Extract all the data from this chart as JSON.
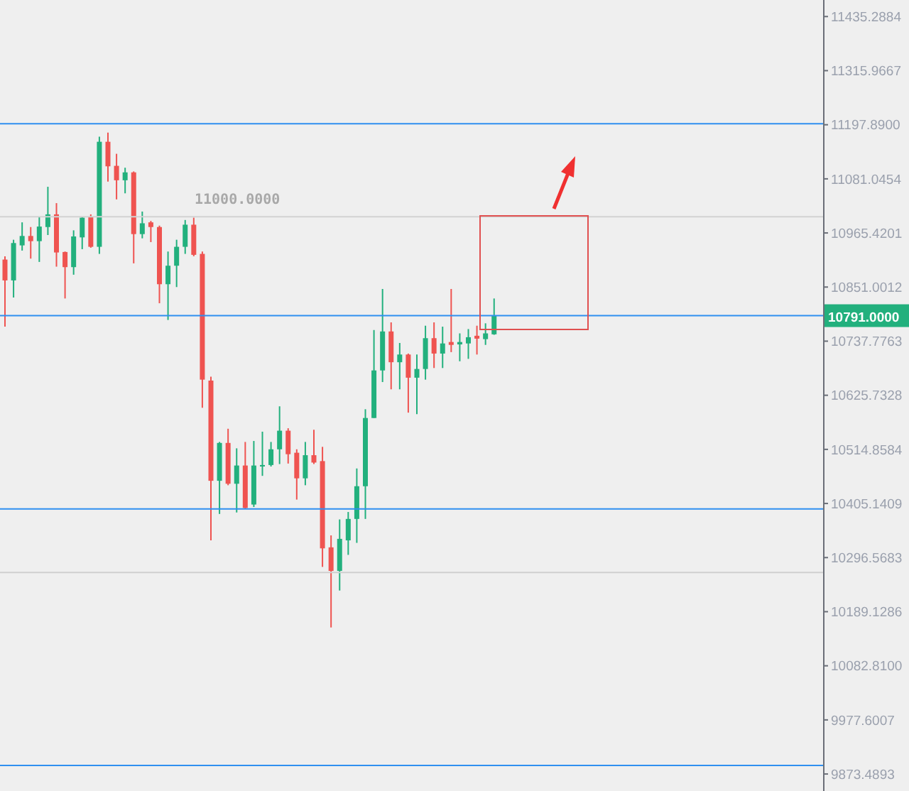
{
  "chart_data": {
    "type": "candlestick",
    "log": "y",
    "categories": [
      null,
      null,
      null,
      null,
      null,
      null,
      null,
      null,
      null,
      null,
      null,
      null,
      null,
      null,
      null,
      null,
      null,
      null,
      null,
      null,
      null,
      null,
      null,
      null,
      null,
      null,
      null,
      null,
      null,
      null,
      null,
      null,
      null,
      null,
      null,
      null,
      null,
      null,
      null,
      null,
      null,
      null,
      null,
      null,
      null,
      null,
      null,
      null,
      null,
      null,
      null,
      null,
      null,
      null,
      null,
      null,
      null,
      null,
      null,
      null,
      null,
      null,
      null,
      null,
      null,
      null,
      null,
      null,
      null,
      null,
      null,
      null,
      null,
      null,
      null,
      null,
      null,
      null,
      null,
      null,
      null,
      null,
      null,
      null,
      null,
      null,
      null,
      null,
      null,
      null,
      null,
      null,
      null,
      null,
      null,
      null
    ],
    "ohlc": [
      [
        10909,
        10916,
        10768,
        10865
      ],
      [
        10865,
        10951,
        10829,
        10944
      ],
      [
        10939,
        10988,
        10928,
        10959
      ],
      [
        10959,
        10978,
        10911,
        10948
      ],
      [
        10948,
        11000,
        10904,
        10979
      ],
      [
        10978,
        11064,
        10961,
        11005
      ],
      [
        11005,
        11029,
        10894,
        10924
      ],
      [
        10925,
        10926,
        10827,
        10893
      ],
      [
        10893,
        10971,
        10877,
        10958
      ],
      [
        10956,
        10999,
        10931,
        10998
      ],
      [
        10999,
        11005,
        10934,
        10936
      ],
      [
        10936,
        11172,
        10921,
        11161
      ],
      [
        11161,
        11181,
        11075,
        11108
      ],
      [
        11109,
        11135,
        11037,
        11078
      ],
      [
        11078,
        11105,
        11050,
        11095
      ],
      [
        11095,
        11097,
        10901,
        10963
      ],
      [
        10963,
        11011,
        10954,
        10986
      ],
      [
        10988,
        10991,
        10946,
        10978
      ],
      [
        10978,
        10981,
        10817,
        10857
      ],
      [
        10857,
        10926,
        10782,
        10896
      ],
      [
        10896,
        10951,
        10851,
        10936
      ],
      [
        10936,
        10993,
        10921,
        10983
      ],
      [
        10983,
        10998,
        10916,
        10919
      ],
      [
        10921,
        10926,
        10600,
        10658
      ],
      [
        10656,
        10664,
        10331,
        10451
      ],
      [
        10451,
        10530,
        10384,
        10528
      ],
      [
        10528,
        10557,
        10442,
        10445
      ],
      [
        10445,
        10517,
        10387,
        10482
      ],
      [
        10482,
        10530,
        10394,
        10396
      ],
      [
        10403,
        10532,
        10398,
        10482
      ],
      [
        10480,
        10551,
        10461,
        10483
      ],
      [
        10483,
        10530,
        10480,
        10515
      ],
      [
        10515,
        10603,
        10485,
        10553
      ],
      [
        10553,
        10558,
        10486,
        10505
      ],
      [
        10508,
        10515,
        10413,
        10456
      ],
      [
        10456,
        10530,
        10442,
        10503
      ],
      [
        10503,
        10555,
        10485,
        10488
      ],
      [
        10491,
        10520,
        10278,
        10315
      ],
      [
        10317,
        10341,
        10158,
        10270
      ],
      [
        10270,
        10373,
        10231,
        10334
      ],
      [
        10331,
        10388,
        10302,
        10374
      ],
      [
        10374,
        10476,
        10326,
        10440
      ],
      [
        10440,
        10597,
        10374,
        10579
      ],
      [
        10579,
        10761,
        10579,
        10677
      ],
      [
        10677,
        10847,
        10653,
        10758
      ],
      [
        10758,
        10777,
        10638,
        10694
      ],
      [
        10694,
        10734,
        10638,
        10710
      ],
      [
        10710,
        10712,
        10590,
        10662
      ],
      [
        10662,
        10710,
        10587,
        10680
      ],
      [
        10680,
        10770,
        10658,
        10744
      ],
      [
        10744,
        10777,
        10682,
        10712
      ],
      [
        10712,
        10768,
        10682,
        10733
      ],
      [
        10736,
        10847,
        10715,
        10730
      ],
      [
        10731,
        10754,
        10696,
        10736
      ],
      [
        10733,
        10763,
        10701,
        10746
      ],
      [
        10749,
        10770,
        10710,
        10743
      ],
      [
        10742,
        10775,
        10730,
        10754
      ],
      [
        10752,
        10827,
        10751,
        10791
      ],
      null,
      null,
      null,
      null,
      null,
      null,
      null,
      null,
      null,
      null,
      null,
      null,
      null,
      null,
      null,
      null,
      null,
      null,
      null,
      null,
      null,
      null,
      null,
      null,
      null,
      null,
      null,
      null,
      null,
      null,
      null,
      null,
      null,
      null,
      null,
      null,
      null,
      null
    ],
    "colors": [
      "#ef5350",
      "#22b07d",
      "#22b07d",
      "#ef5350",
      "#22b07d",
      "#22b07d",
      "#ef5350",
      "#ef5350",
      "#22b07d",
      "#22b07d",
      "#ef5350",
      "#22b07d",
      "#ef5350",
      "#ef5350",
      "#22b07d",
      "#ef5350",
      "#22b07d",
      "#ef5350",
      "#ef5350",
      "#22b07d",
      "#22b07d",
      "#22b07d",
      "#ef5350",
      "#ef5350",
      "#ef5350",
      "#22b07d",
      "#ef5350",
      "#22b07d",
      "#ef5350",
      "#22b07d",
      "#22b07d",
      "#22b07d",
      "#22b07d",
      "#ef5350",
      "#ef5350",
      "#22b07d",
      "#ef5350",
      "#ef5350",
      "#ef5350",
      "#22b07d",
      "#22b07d",
      "#22b07d",
      "#22b07d",
      "#22b07d",
      "#22b07d",
      "#ef5350",
      "#22b07d",
      "#ef5350",
      "#22b07d",
      "#22b07d",
      "#ef5350",
      "#22b07d",
      "#ef5350",
      "#22b07d",
      "#22b07d",
      "#ef5350",
      "#22b07d",
      "#22b07d",
      null,
      null,
      null,
      null,
      null,
      null,
      null,
      null,
      null,
      null,
      null,
      null,
      null,
      null,
      null,
      null,
      null,
      null,
      null,
      null,
      null,
      null,
      null,
      null,
      null,
      null,
      null,
      null,
      null,
      null,
      null,
      null,
      null,
      null,
      null,
      null,
      null,
      null
    ],
    "ylim": [
      9841,
      11472
    ],
    "yticks": [
      11435.2884,
      11315.9667,
      {
        "value": 11197.89,
        "label": "11197.8900"
      },
      11081.0454,
      10965.4201,
      10851.0012,
      10737.7763,
      10625.7328,
      10514.8584,
      10405.1409,
      10296.5683,
      10189.1286,
      {
        "value": 10082.81,
        "label": "10082.8100"
      },
      9977.6007,
      9873.4893
    ],
    "ref_lines": [
      {
        "axis": "y",
        "value": 11200,
        "color": "#2f8ff0"
      },
      {
        "axis": "y",
        "value": 10791,
        "label": "10791.0000",
        "color": "#2f8ff0"
      },
      {
        "axis": "y",
        "value": 10394,
        "color": "#2f8ff0"
      },
      {
        "axis": "y",
        "value": 9890,
        "color": "#2f8ff0"
      },
      {
        "axis": "y",
        "value": 10267,
        "color": "#cfcfcf"
      },
      {
        "axis": "y",
        "value": 11000,
        "label": "11000.0000",
        "color": "#d2d2d2"
      }
    ]
  }
}
